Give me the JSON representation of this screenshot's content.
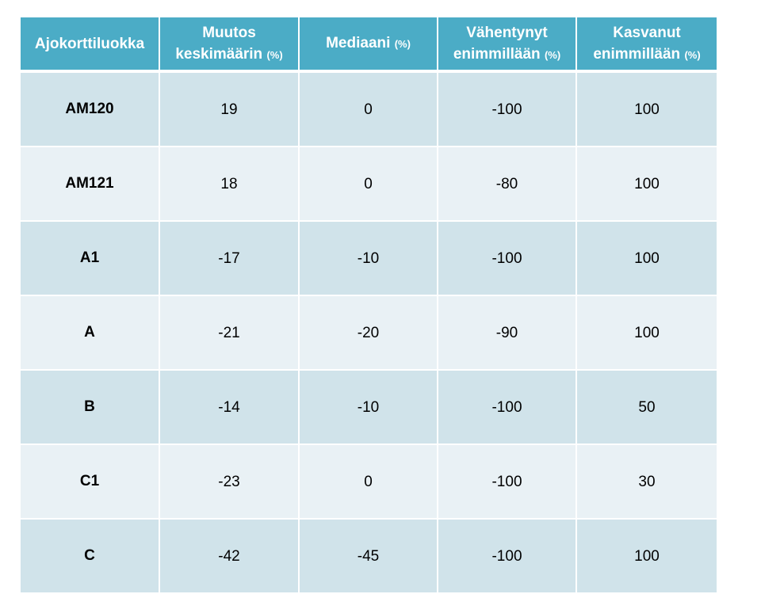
{
  "table": {
    "headers": [
      {
        "text": "Ajokorttiluokka",
        "unit": ""
      },
      {
        "text": "Muutos keskimäärin",
        "unit": "(%)"
      },
      {
        "text": "Mediaani",
        "unit": "(%)"
      },
      {
        "text": "Vähentynyt enimmillään",
        "unit": "(%)"
      },
      {
        "text": "Kasvanut enimmillään",
        "unit": "(%)"
      }
    ],
    "rows": [
      {
        "luokka": "AM120",
        "muutos": "19",
        "mediaani": "0",
        "vahentynyt": "-100",
        "kasvanut": "100"
      },
      {
        "luokka": "AM121",
        "muutos": "18",
        "mediaani": "0",
        "vahentynyt": "-80",
        "kasvanut": "100"
      },
      {
        "luokka": "A1",
        "muutos": "-17",
        "mediaani": "-10",
        "vahentynyt": "-100",
        "kasvanut": "100"
      },
      {
        "luokka": "A",
        "muutos": "-21",
        "mediaani": "-20",
        "vahentynyt": "-90",
        "kasvanut": "100"
      },
      {
        "luokka": "B",
        "muutos": "-14",
        "mediaani": "-10",
        "vahentynyt": "-100",
        "kasvanut": "50"
      },
      {
        "luokka": "C1",
        "muutos": "-23",
        "mediaani": "0",
        "vahentynyt": "-100",
        "kasvanut": "30"
      },
      {
        "luokka": "C",
        "muutos": "-42",
        "mediaani": "-45",
        "vahentynyt": "-100",
        "kasvanut": "100"
      }
    ]
  },
  "colors": {
    "header_bg": "#4bacc6",
    "row_dark": "#d0e3ea",
    "row_light": "#e9f1f5"
  }
}
